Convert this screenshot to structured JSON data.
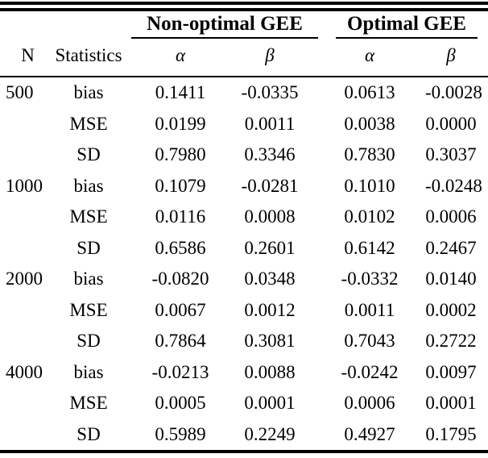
{
  "table": {
    "header": {
      "n_label": "N",
      "statistics_label": "Statistics",
      "groups": [
        {
          "label": "Non-optimal GEE",
          "sub": [
            "α",
            "β"
          ]
        },
        {
          "label": "Optimal GEE",
          "sub": [
            "α",
            "β"
          ]
        }
      ]
    },
    "rows": [
      {
        "n": "500",
        "stat": "bias",
        "values": [
          "0.1411",
          "-0.0335",
          "0.0613",
          "-0.0028"
        ]
      },
      {
        "n": "",
        "stat": "MSE",
        "values": [
          "0.0199",
          "0.0011",
          "0.0038",
          "0.0000"
        ]
      },
      {
        "n": "",
        "stat": "SD",
        "values": [
          "0.7980",
          "0.3346",
          "0.7830",
          "0.3037"
        ]
      },
      {
        "n": "1000",
        "stat": "bias",
        "values": [
          "0.1079",
          "-0.0281",
          "0.1010",
          "-0.0248"
        ]
      },
      {
        "n": "",
        "stat": "MSE",
        "values": [
          "0.0116",
          "0.0008",
          "0.0102",
          "0.0006"
        ]
      },
      {
        "n": "",
        "stat": "SD",
        "values": [
          "0.6586",
          "0.2601",
          "0.6142",
          "0.2467"
        ]
      },
      {
        "n": "2000",
        "stat": "bias",
        "values": [
          "-0.0820",
          "0.0348",
          "-0.0332",
          "0.0140"
        ]
      },
      {
        "n": "",
        "stat": "MSE",
        "values": [
          "0.0067",
          "0.0012",
          "0.0011",
          "0.0002"
        ]
      },
      {
        "n": "",
        "stat": "SD",
        "values": [
          "0.7864",
          "0.3081",
          "0.7043",
          "0.2722"
        ]
      },
      {
        "n": "4000",
        "stat": "bias",
        "values": [
          "-0.0213",
          "0.0088",
          "-0.0242",
          "0.0097"
        ]
      },
      {
        "n": "",
        "stat": "MSE",
        "values": [
          "0.0005",
          "0.0001",
          "0.0006",
          "0.0001"
        ]
      },
      {
        "n": "",
        "stat": "SD",
        "values": [
          "0.5989",
          "0.2249",
          "0.4927",
          "0.1795"
        ]
      }
    ],
    "colors": {
      "rule": "#000000",
      "text": "#000000",
      "background": "#ffffff"
    }
  }
}
